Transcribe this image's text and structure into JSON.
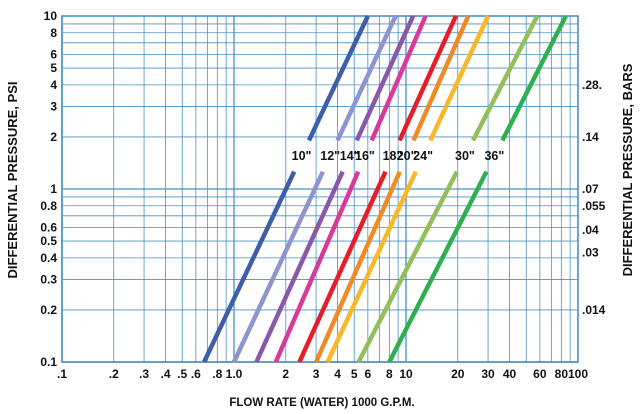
{
  "chart_data": {
    "type": "line",
    "title": "",
    "xlabel": "FLOW RATE (WATER) 1000 G.P.M.",
    "ylabel": "DIFFERENTIAL PRESSURE, PSI",
    "y2label": "DIFFERENTIAL PRESSURE, BARS",
    "xscale": "log",
    "yscale": "log",
    "xlim": [
      0.1,
      100
    ],
    "ylim": [
      0.1,
      10
    ],
    "grid": true,
    "x_tick_labels": [
      {
        "value": 0.1,
        "label": ".1"
      },
      {
        "value": 0.2,
        "label": ".2"
      },
      {
        "value": 0.3,
        "label": ".3"
      },
      {
        "value": 0.4,
        "label": ".4"
      },
      {
        "value": 0.5,
        "label": ".5"
      },
      {
        "value": 0.6,
        "label": ".6"
      },
      {
        "value": 0.8,
        "label": ".8"
      },
      {
        "value": 1.0,
        "label": "1.0"
      },
      {
        "value": 2,
        "label": "2"
      },
      {
        "value": 3,
        "label": "3"
      },
      {
        "value": 4,
        "label": "4"
      },
      {
        "value": 5,
        "label": "5"
      },
      {
        "value": 6,
        "label": "6"
      },
      {
        "value": 8,
        "label": "8"
      },
      {
        "value": 10,
        "label": "10"
      },
      {
        "value": 20,
        "label": "20"
      },
      {
        "value": 30,
        "label": "30"
      },
      {
        "value": 40,
        "label": "40"
      },
      {
        "value": 60,
        "label": "60"
      },
      {
        "value": 80,
        "label": "80"
      },
      {
        "value": 100,
        "label": "100"
      }
    ],
    "y_tick_labels": [
      {
        "value": 0.1,
        "label": "0.1"
      },
      {
        "value": 0.2,
        "label": "0.2"
      },
      {
        "value": 0.3,
        "label": "0.3"
      },
      {
        "value": 0.4,
        "label": "0.4"
      },
      {
        "value": 0.5,
        "label": "0.5"
      },
      {
        "value": 0.6,
        "label": "0.6"
      },
      {
        "value": 0.8,
        "label": "0.8"
      },
      {
        "value": 1,
        "label": "1"
      },
      {
        "value": 2,
        "label": "2"
      },
      {
        "value": 3,
        "label": "3"
      },
      {
        "value": 4,
        "label": "4"
      },
      {
        "value": 5,
        "label": "5"
      },
      {
        "value": 6,
        "label": "6"
      },
      {
        "value": 8,
        "label": "8"
      },
      {
        "value": 10,
        "label": "10"
      }
    ],
    "y2_tick_labels": [
      {
        "value": 0.2,
        "label": ".014"
      },
      {
        "value": 0.43,
        "label": ".03"
      },
      {
        "value": 0.58,
        "label": ".04"
      },
      {
        "value": 0.8,
        "label": ".055"
      },
      {
        "value": 1.0,
        "label": ".07"
      },
      {
        "value": 2.0,
        "label": ".14"
      },
      {
        "value": 4.0,
        "label": ".28."
      }
    ],
    "series": [
      {
        "name": "10\"",
        "color": "#3d5ea8",
        "x": [
          0.67,
          6.0
        ],
        "y": [
          0.1,
          10
        ]
      },
      {
        "name": "12\"",
        "color": "#8c95d1",
        "x": [
          1.0,
          8.7
        ],
        "y": [
          0.1,
          10
        ]
      },
      {
        "name": "14\"",
        "color": "#8a58a8",
        "x": [
          1.35,
          11.0
        ],
        "y": [
          0.1,
          10
        ]
      },
      {
        "name": "16\"",
        "color": "#d63b9b",
        "x": [
          1.75,
          13.0
        ],
        "y": [
          0.1,
          10
        ]
      },
      {
        "name": "18\"",
        "color": "#e21f2b",
        "x": [
          2.4,
          19.5
        ],
        "y": [
          0.1,
          10
        ]
      },
      {
        "name": "20\"",
        "color": "#f08a26",
        "x": [
          3.0,
          23.0
        ],
        "y": [
          0.1,
          10
        ]
      },
      {
        "name": "24\"",
        "color": "#f8b82a",
        "x": [
          3.5,
          30.0
        ],
        "y": [
          0.1,
          10
        ]
      },
      {
        "name": "30\"",
        "color": "#93be5c",
        "x": [
          5.3,
          58.0
        ],
        "y": [
          0.1,
          10
        ]
      },
      {
        "name": "36\"",
        "color": "#2fae52",
        "x": [
          8.0,
          85.0
        ],
        "y": [
          0.1,
          10
        ]
      }
    ],
    "label_y": 1.55
  }
}
